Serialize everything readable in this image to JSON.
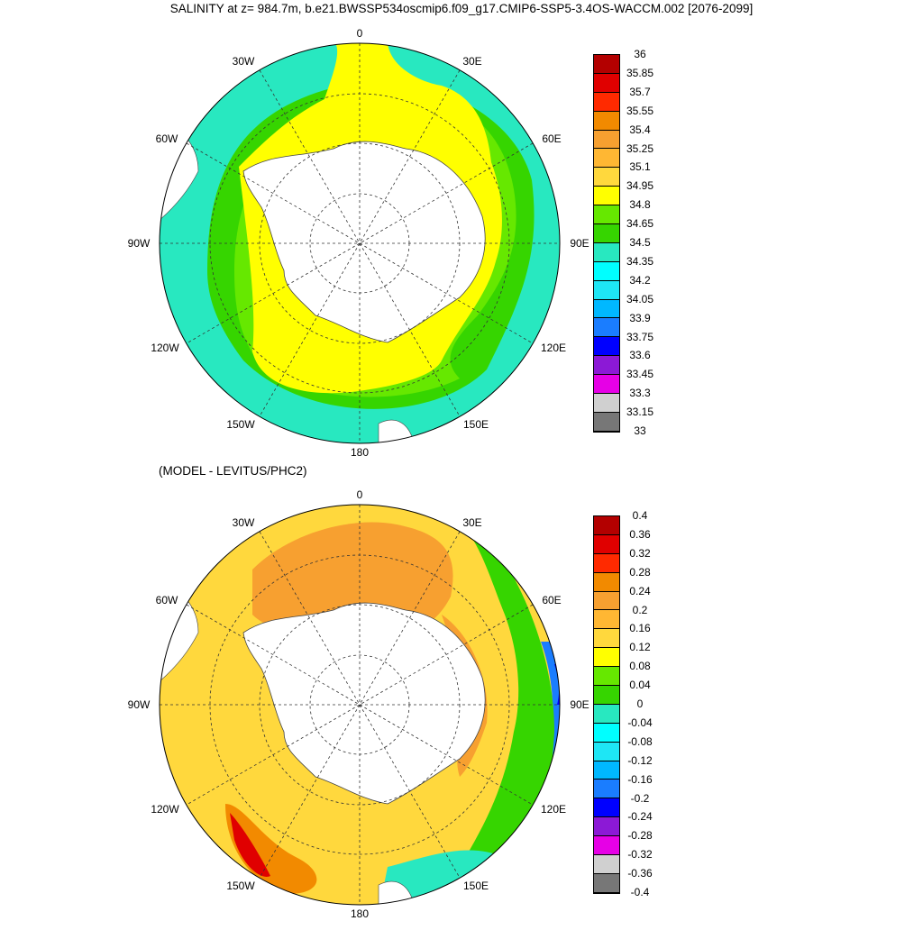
{
  "title": "SALINITY at z= 984.7m, b.e21.BWSSP534oscmip6.f09_g17.CMIP6-SSP5-3.4OS-WACCM.002 [2076-2099]",
  "subtitle": "(MODEL - LEVITUS/PHC2)",
  "lon_labels": {
    "n": "0",
    "nne": "30E",
    "ene": "60E",
    "e": "90E",
    "ese": "120E",
    "sse": "150E",
    "s": "180",
    "ssw": "150W",
    "wsw": "120W",
    "w": "90W",
    "wnw": "60W",
    "nnw": "30W"
  },
  "top_colorbar": {
    "labels": [
      "36",
      "35.85",
      "35.7",
      "35.55",
      "35.4",
      "35.25",
      "35.1",
      "34.95",
      "34.8",
      "34.65",
      "34.5",
      "34.35",
      "34.2",
      "34.05",
      "33.9",
      "33.75",
      "33.6",
      "33.45",
      "33.3",
      "33.15",
      "33"
    ],
    "colors": [
      "#b30000",
      "#e00000",
      "#ff2a00",
      "#f28a00",
      "#f7a030",
      "#ffb733",
      "#ffd83d",
      "#ffff00",
      "#66e800",
      "#36d500",
      "#28e8c0",
      "#00ffff",
      "#1ee6f5",
      "#00b8ff",
      "#1a7dff",
      "#0000ff",
      "#8c19d6",
      "#e600e6",
      "#d0d0d0",
      "#777777"
    ]
  },
  "bottom_colorbar": {
    "labels": [
      "0.4",
      "0.36",
      "0.32",
      "0.28",
      "0.24",
      "0.2",
      "0.16",
      "0.12",
      "0.08",
      "0.04",
      "0",
      "-0.04",
      "-0.08",
      "-0.12",
      "-0.16",
      "-0.2",
      "-0.24",
      "-0.28",
      "-0.32",
      "-0.36",
      "-0.4"
    ],
    "colors": [
      "#b30000",
      "#e00000",
      "#ff2a00",
      "#f28a00",
      "#f7a030",
      "#ffb733",
      "#ffd83d",
      "#ffff00",
      "#66e800",
      "#36d500",
      "#28e8c0",
      "#00ffff",
      "#1ee6f5",
      "#00b8ff",
      "#1a7dff",
      "#0000ff",
      "#8c19d6",
      "#e600e6",
      "#d0d0d0",
      "#777777"
    ]
  }
}
